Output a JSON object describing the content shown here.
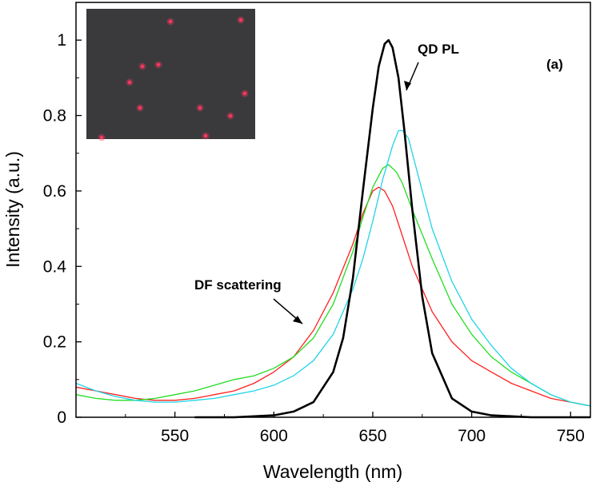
{
  "chart_data": {
    "type": "line",
    "title": "",
    "xlabel": "Wavelength (nm)",
    "ylabel": "Intensity (a.u.)",
    "xlim": [
      500,
      760
    ],
    "ylim": [
      0,
      1.1
    ],
    "xticks": [
      550,
      600,
      650,
      700,
      750
    ],
    "yticks": [
      0,
      0.2,
      0.4,
      0.6,
      0.8,
      1
    ],
    "ytick_labels": [
      "0",
      "0.2",
      "0.4",
      "0.6",
      "0.8",
      "1"
    ],
    "grid": false,
    "legend": "none",
    "series": [
      {
        "color": "#000000",
        "x": [
          560,
          580,
          600,
          610,
          620,
          630,
          635,
          640,
          645,
          650,
          653,
          656,
          658,
          660,
          663,
          666,
          670,
          675,
          680,
          690,
          700,
          710,
          730,
          760
        ],
        "y": [
          0.0,
          0.0,
          0.005,
          0.015,
          0.04,
          0.12,
          0.21,
          0.37,
          0.6,
          0.82,
          0.93,
          0.99,
          1.0,
          0.98,
          0.9,
          0.76,
          0.55,
          0.32,
          0.17,
          0.05,
          0.015,
          0.005,
          0.0,
          0.0
        ]
      },
      {
        "color": "#ff2020",
        "x": [
          500,
          510,
          520,
          530,
          540,
          550,
          560,
          570,
          580,
          590,
          600,
          610,
          620,
          630,
          640,
          645,
          650,
          653,
          656,
          660,
          665,
          670,
          680,
          690,
          700,
          710,
          720,
          730,
          740,
          750,
          760
        ],
        "y": [
          0.08,
          0.07,
          0.06,
          0.05,
          0.045,
          0.045,
          0.05,
          0.06,
          0.07,
          0.09,
          0.12,
          0.16,
          0.23,
          0.33,
          0.46,
          0.54,
          0.6,
          0.61,
          0.6,
          0.56,
          0.48,
          0.4,
          0.28,
          0.2,
          0.15,
          0.12,
          0.09,
          0.07,
          0.05,
          0.04,
          0.03
        ]
      },
      {
        "color": "#22dd22",
        "x": [
          500,
          510,
          520,
          530,
          540,
          550,
          560,
          570,
          580,
          590,
          600,
          610,
          620,
          630,
          640,
          645,
          650,
          655,
          658,
          662,
          665,
          670,
          680,
          690,
          700,
          710,
          720,
          730,
          740,
          750,
          760
        ],
        "y": [
          0.06,
          0.05,
          0.045,
          0.045,
          0.05,
          0.06,
          0.07,
          0.085,
          0.1,
          0.11,
          0.13,
          0.16,
          0.21,
          0.3,
          0.44,
          0.53,
          0.61,
          0.66,
          0.67,
          0.65,
          0.62,
          0.55,
          0.42,
          0.3,
          0.22,
          0.16,
          0.12,
          0.09,
          0.06,
          0.04,
          0.03
        ]
      },
      {
        "color": "#22d4e8",
        "x": [
          500,
          510,
          520,
          530,
          540,
          550,
          560,
          570,
          580,
          590,
          600,
          610,
          620,
          630,
          640,
          645,
          650,
          655,
          660,
          663,
          665,
          668,
          670,
          675,
          680,
          690,
          700,
          710,
          720,
          730,
          740,
          750,
          760
        ],
        "y": [
          0.09,
          0.07,
          0.055,
          0.045,
          0.04,
          0.04,
          0.045,
          0.05,
          0.06,
          0.07,
          0.085,
          0.11,
          0.15,
          0.22,
          0.34,
          0.42,
          0.52,
          0.63,
          0.72,
          0.76,
          0.76,
          0.74,
          0.7,
          0.6,
          0.5,
          0.36,
          0.26,
          0.19,
          0.13,
          0.09,
          0.06,
          0.04,
          0.03
        ]
      }
    ],
    "annotations": [
      {
        "text": "QD PL",
        "arrow_to": [
          662,
          0.9
        ]
      },
      {
        "text": "DF scattering",
        "arrow_to": [
          621,
          0.24
        ]
      },
      {
        "text": "(a)"
      }
    ],
    "inset": {
      "description_kind": "dark-field image",
      "background": "#3a3a3c",
      "spot_color": "#ff3860"
    }
  }
}
